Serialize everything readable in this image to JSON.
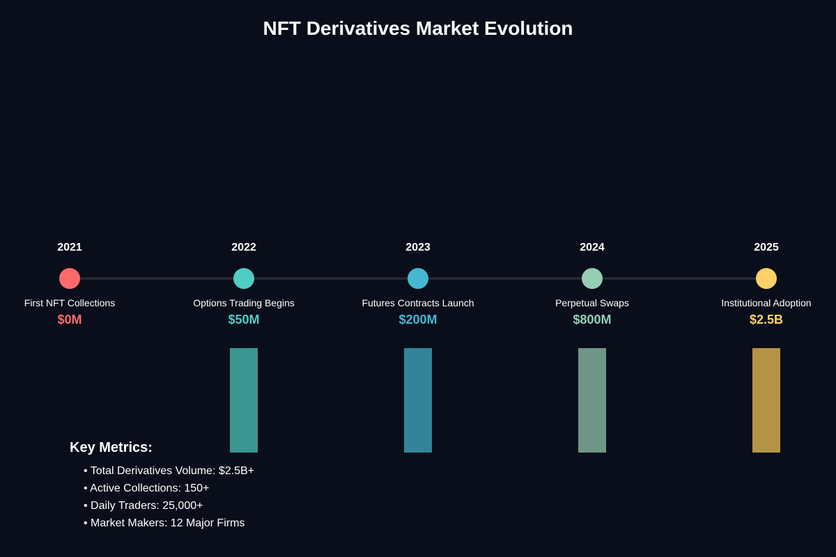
{
  "chart_data": {
    "type": "timeline-bar",
    "title": "NFT Derivatives Market Evolution",
    "unit": "USD volume",
    "categories": [
      "2021",
      "2022",
      "2023",
      "2024",
      "2025"
    ],
    "milestones": [
      "First NFT Collections",
      "Options Trading Begins",
      "Futures Contracts Launch",
      "Perpetual Swaps",
      "Institutional Adoption"
    ],
    "value_labels": [
      "$0M",
      "$50M",
      "$200M",
      "$800M",
      "$2.5B"
    ],
    "values": [
      0,
      50,
      200,
      800,
      2500
    ],
    "colors": [
      "#ff6b6b",
      "#4ecdc4",
      "#45b7d1",
      "#96ceb4",
      "#ffd166"
    ],
    "bar_colors": [
      "#ff6b6b",
      "#3a9690",
      "#33849a",
      "#6e9685",
      "#b59345"
    ]
  },
  "metrics": {
    "title": "Key Metrics:",
    "items": [
      "• Total Derivatives Volume: $2.5B+",
      "• Active Collections: 150+",
      "• Daily Traders: 25,000+",
      "• Market Makers: 12 Major Firms"
    ]
  }
}
